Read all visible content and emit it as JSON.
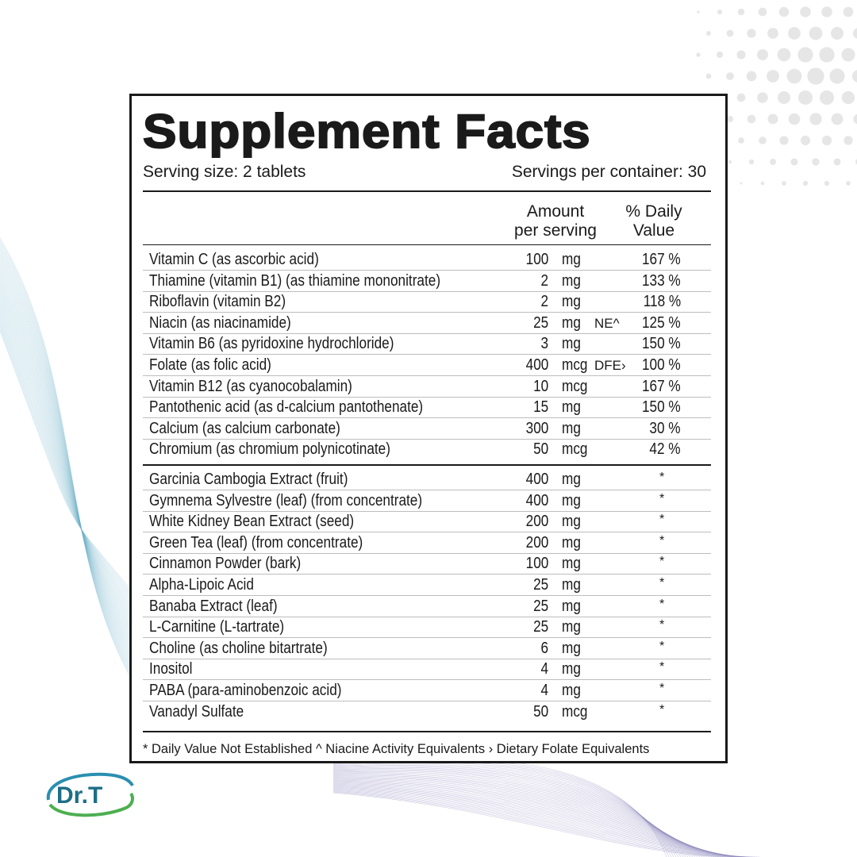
{
  "title": "Supplement Facts",
  "serving_size": "Serving size: 2 tablets",
  "servings_per_container": "Servings per container: 30",
  "headers": {
    "amount_1": "Amount",
    "amount_2": "per serving",
    "dv_1": "% Daily",
    "dv_2": "Value"
  },
  "vitamins": [
    {
      "name": "Vitamin C (as ascorbic acid)",
      "amount": "100",
      "unit": "mg",
      "extra": "",
      "dv": "167 %"
    },
    {
      "name": "Thiamine (vitamin B1) (as thiamine mononitrate)",
      "amount": "2",
      "unit": "mg",
      "extra": "",
      "dv": "133 %"
    },
    {
      "name": "Riboflavin (vitamin B2)",
      "amount": "2",
      "unit": "mg",
      "extra": "",
      "dv": "118 %"
    },
    {
      "name": "Niacin (as niacinamide)",
      "amount": "25",
      "unit": "mg",
      "extra": "NE^",
      "dv": "125 %"
    },
    {
      "name": "Vitamin B6 (as pyridoxine hydrochloride)",
      "amount": "3",
      "unit": "mg",
      "extra": "",
      "dv": "150 %"
    },
    {
      "name": "Folate (as folic acid)",
      "amount": "400",
      "unit": "mcg",
      "extra": "DFE›",
      "dv": "100 %"
    },
    {
      "name": "Vitamin B12 (as cyanocobalamin)",
      "amount": "10",
      "unit": "mcg",
      "extra": "",
      "dv": "167 %"
    },
    {
      "name": "Pantothenic acid (as d-calcium pantothenate)",
      "amount": "15",
      "unit": "mg",
      "extra": "",
      "dv": "150 %"
    },
    {
      "name": "Calcium (as calcium carbonate)",
      "amount": "300",
      "unit": "mg",
      "extra": "",
      "dv": "30 %"
    },
    {
      "name": "Chromium (as chromium polynicotinate)",
      "amount": "50",
      "unit": "mcg",
      "extra": "",
      "dv": "42 %"
    }
  ],
  "others": [
    {
      "name": "Garcinia Cambogia Extract (fruit)",
      "amount": "400",
      "unit": "mg",
      "dv": "*"
    },
    {
      "name": "Gymnema Sylvestre (leaf) (from concentrate)",
      "amount": "400",
      "unit": "mg",
      "dv": "*"
    },
    {
      "name": "White Kidney Bean Extract (seed)",
      "amount": "200",
      "unit": "mg",
      "dv": "*"
    },
    {
      "name": "Green Tea (leaf) (from concentrate)",
      "amount": "200",
      "unit": "mg",
      "dv": "*"
    },
    {
      "name": "Cinnamon Powder (bark)",
      "amount": "100",
      "unit": "mg",
      "dv": "*"
    },
    {
      "name": "Alpha-Lipoic Acid",
      "amount": "25",
      "unit": "mg",
      "dv": "*"
    },
    {
      "name": "Banaba Extract (leaf)",
      "amount": "25",
      "unit": "mg",
      "dv": "*"
    },
    {
      "name": "L-Carnitine (L-tartrate)",
      "amount": "25",
      "unit": "mg",
      "dv": "*"
    },
    {
      "name": "Choline (as choline bitartrate)",
      "amount": "6",
      "unit": "mg",
      "dv": "*"
    },
    {
      "name": "Inositol",
      "amount": "4",
      "unit": "mg",
      "dv": "*"
    },
    {
      "name": "PABA (para-aminobenzoic acid)",
      "amount": "4",
      "unit": "mg",
      "dv": "*"
    },
    {
      "name": "Vanadyl Sulfate",
      "amount": "50",
      "unit": "mcg",
      "dv": "*"
    }
  ],
  "footnote": "* Daily Value Not Established   ^ Niacine Activity Equivalents › Dietary Folate Equivalents",
  "logo": {
    "text": "Dr.T",
    "colors": {
      "text": "#1d6f86",
      "arc_top": "#2a8fb0",
      "arc_bottom": "#4caf50"
    }
  }
}
